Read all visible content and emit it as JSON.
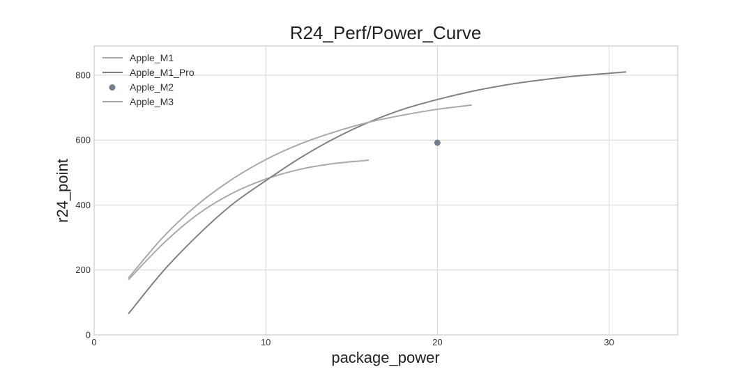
{
  "chart_data": {
    "type": "line",
    "title": "R24_Perf/Power_Curve",
    "xlabel": "package_power",
    "ylabel": "r24_point",
    "xlim": [
      0,
      34
    ],
    "ylim": [
      0,
      890
    ],
    "xticks": [
      0,
      10,
      20,
      30
    ],
    "yticks": [
      0,
      200,
      400,
      600,
      800
    ],
    "grid": true,
    "legend_position": "top-left",
    "series": [
      {
        "name": "Apple_M1",
        "style": "line",
        "color": "#a9a9a9",
        "x": [
          2,
          4,
          6,
          8,
          10,
          12,
          14,
          16
        ],
        "y": [
          170,
          280,
          370,
          435,
          480,
          510,
          528,
          538
        ]
      },
      {
        "name": "Apple_M1_Pro",
        "style": "line",
        "color": "#808080",
        "x": [
          2,
          4,
          6,
          8,
          10,
          12,
          14,
          16,
          18,
          20,
          22,
          24,
          26,
          28,
          31
        ],
        "y": [
          65,
          195,
          305,
          400,
          475,
          545,
          605,
          655,
          695,
          725,
          750,
          770,
          785,
          797,
          810
        ]
      },
      {
        "name": "Apple_M2",
        "style": "scatter",
        "color": "#708090",
        "x": [
          20
        ],
        "y": [
          592
        ]
      },
      {
        "name": "Apple_M3",
        "style": "line",
        "color": "#a9a9a9",
        "x": [
          2,
          4,
          6,
          8,
          10,
          12,
          14,
          16,
          18,
          20,
          22
        ],
        "y": [
          175,
          300,
          400,
          478,
          540,
          588,
          625,
          655,
          677,
          695,
          708
        ]
      }
    ]
  }
}
